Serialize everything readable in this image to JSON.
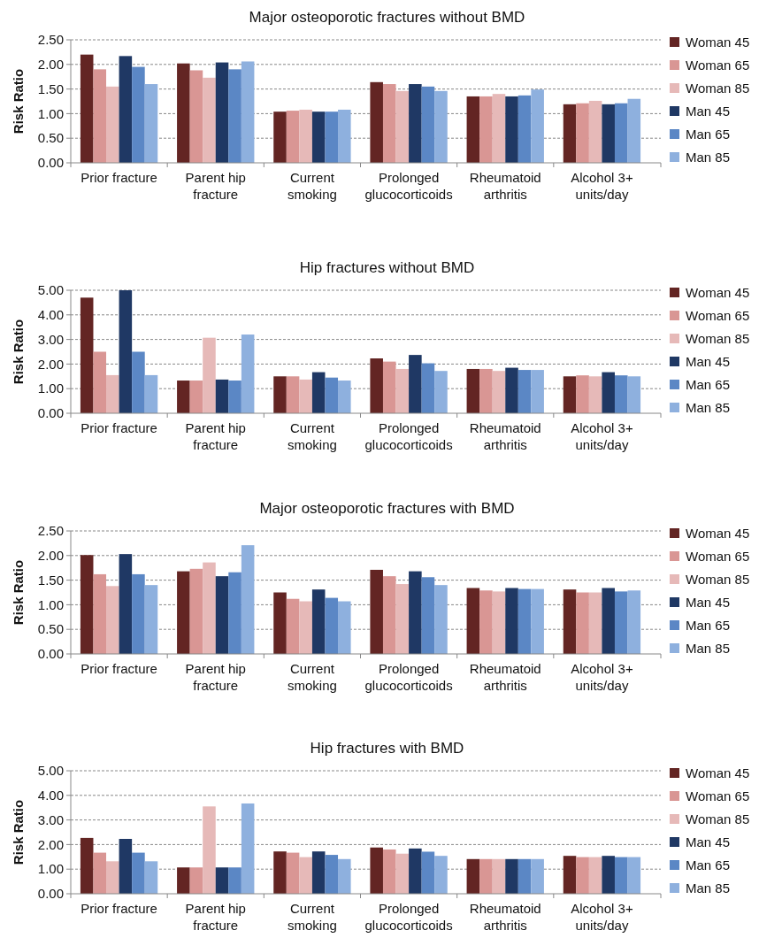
{
  "chart_data": [
    {
      "type": "bar",
      "title": "Major osteoporotic fractures without BMD",
      "ylabel": "Risk Ratio",
      "categories": [
        "Prior fracture",
        "Parent hip fracture",
        "Current smoking",
        "Prolonged glucocorticoids",
        "Rheumatoid arthritis",
        "Alcohol 3+ units/day"
      ],
      "ylim": [
        0,
        2.5
      ],
      "yticks": [
        {
          "value": 0,
          "label": "0.00"
        },
        {
          "value": 0.5,
          "label": "0.50"
        },
        {
          "value": 1,
          "label": "1.00"
        },
        {
          "value": 1.5,
          "label": "1.50"
        },
        {
          "value": 2,
          "label": "2.00"
        },
        {
          "value": 2.5,
          "label": "2.50"
        }
      ],
      "grid": "y",
      "legend": "right",
      "series": [
        {
          "name": "Woman 45",
          "color": "#632523",
          "values": [
            2.2,
            2.02,
            1.04,
            1.64,
            1.35,
            1.19
          ]
        },
        {
          "name": "Woman 65",
          "color": "#d99694",
          "values": [
            1.9,
            1.88,
            1.06,
            1.6,
            1.35,
            1.21
          ]
        },
        {
          "name": "Woman 85",
          "color": "#e6b9b8",
          "values": [
            1.55,
            1.73,
            1.08,
            1.46,
            1.4,
            1.26
          ]
        },
        {
          "name": "Man 45",
          "color": "#1f3864",
          "values": [
            2.17,
            2.04,
            1.04,
            1.6,
            1.35,
            1.19
          ]
        },
        {
          "name": "Man 65",
          "color": "#5b87c5",
          "values": [
            1.95,
            1.9,
            1.04,
            1.55,
            1.37,
            1.21
          ]
        },
        {
          "name": "Man 85",
          "color": "#8eb0de",
          "values": [
            1.6,
            2.06,
            1.08,
            1.46,
            1.49,
            1.3
          ]
        }
      ]
    },
    {
      "type": "bar",
      "title": "Hip fractures without BMD",
      "ylabel": "Risk Ratio",
      "categories": [
        "Prior fracture",
        "Parent hip fracture",
        "Current smoking",
        "Prolonged glucocorticoids",
        "Rheumatoid arthritis",
        "Alcohol 3+ units/day"
      ],
      "ylim": [
        0,
        5
      ],
      "yticks": [
        {
          "value": 0,
          "label": "0.00"
        },
        {
          "value": 1,
          "label": "1.00"
        },
        {
          "value": 2,
          "label": "2.00"
        },
        {
          "value": 3,
          "label": "3.00"
        },
        {
          "value": 4,
          "label": "4.00"
        },
        {
          "value": 5,
          "label": "5.00"
        }
      ],
      "grid": "y",
      "legend": "right",
      "series": [
        {
          "name": "Woman 45",
          "color": "#632523",
          "values": [
            4.7,
            1.33,
            1.5,
            2.23,
            1.8,
            1.5
          ]
        },
        {
          "name": "Woman 65",
          "color": "#d99694",
          "values": [
            2.5,
            1.33,
            1.5,
            2.1,
            1.8,
            1.54
          ]
        },
        {
          "name": "Woman 85",
          "color": "#e6b9b8",
          "values": [
            1.55,
            3.07,
            1.37,
            1.8,
            1.72,
            1.5
          ]
        },
        {
          "name": "Man 45",
          "color": "#1f3864",
          "values": [
            5.0,
            1.37,
            1.67,
            2.37,
            1.85,
            1.67
          ]
        },
        {
          "name": "Man 65",
          "color": "#5b87c5",
          "values": [
            2.5,
            1.33,
            1.45,
            2.03,
            1.76,
            1.54
          ]
        },
        {
          "name": "Man 85",
          "color": "#8eb0de",
          "values": [
            1.55,
            3.2,
            1.33,
            1.72,
            1.76,
            1.5
          ]
        }
      ]
    },
    {
      "type": "bar",
      "title": "Major osteoporotic fractures with BMD",
      "ylabel": "Risk Ratio",
      "categories": [
        "Prior fracture",
        "Parent hip fracture",
        "Current smoking",
        "Prolonged glucocorticoids",
        "Rheumatoid arthritis",
        "Alcohol 3+ units/day"
      ],
      "ylim": [
        0,
        2.5
      ],
      "yticks": [
        {
          "value": 0,
          "label": "0.00"
        },
        {
          "value": 0.5,
          "label": "0.50"
        },
        {
          "value": 1,
          "label": "1.00"
        },
        {
          "value": 1.5,
          "label": "1.50"
        },
        {
          "value": 2,
          "label": "2.00"
        },
        {
          "value": 2.5,
          "label": "2.50"
        }
      ],
      "grid": "y",
      "legend": "right",
      "series": [
        {
          "name": "Woman 45",
          "color": "#632523",
          "values": [
            2.01,
            1.68,
            1.25,
            1.71,
            1.34,
            1.31
          ]
        },
        {
          "name": "Woman 65",
          "color": "#d99694",
          "values": [
            1.62,
            1.73,
            1.12,
            1.58,
            1.29,
            1.25
          ]
        },
        {
          "name": "Woman 85",
          "color": "#e6b9b8",
          "values": [
            1.38,
            1.86,
            1.07,
            1.42,
            1.27,
            1.25
          ]
        },
        {
          "name": "Man 45",
          "color": "#1f3864",
          "values": [
            2.03,
            1.58,
            1.31,
            1.68,
            1.34,
            1.34
          ]
        },
        {
          "name": "Man 65",
          "color": "#5b87c5",
          "values": [
            1.62,
            1.66,
            1.14,
            1.56,
            1.32,
            1.27
          ]
        },
        {
          "name": "Man 85",
          "color": "#8eb0de",
          "values": [
            1.4,
            2.21,
            1.07,
            1.4,
            1.32,
            1.29
          ]
        }
      ]
    },
    {
      "type": "bar",
      "title": "Hip fractures with BMD",
      "ylabel": "Risk Ratio",
      "categories": [
        "Prior fracture",
        "Parent hip fracture",
        "Current smoking",
        "Prolonged glucocorticoids",
        "Rheumatoid arthritis",
        "Alcohol 3+ units/day"
      ],
      "ylim": [
        0,
        5
      ],
      "yticks": [
        {
          "value": 0,
          "label": "0.00"
        },
        {
          "value": 1,
          "label": "1.00"
        },
        {
          "value": 2,
          "label": "2.00"
        },
        {
          "value": 3,
          "label": "3.00"
        },
        {
          "value": 4,
          "label": "4.00"
        },
        {
          "value": 5,
          "label": "5.00"
        }
      ],
      "grid": "y",
      "legend": "right",
      "series": [
        {
          "name": "Woman 45",
          "color": "#632523",
          "values": [
            2.27,
            1.07,
            1.72,
            1.88,
            1.41,
            1.54
          ]
        },
        {
          "name": "Woman 65",
          "color": "#d99694",
          "values": [
            1.67,
            1.07,
            1.67,
            1.8,
            1.41,
            1.49
          ]
        },
        {
          "name": "Woman 85",
          "color": "#e6b9b8",
          "values": [
            1.32,
            3.55,
            1.49,
            1.63,
            1.41,
            1.49
          ]
        },
        {
          "name": "Man 45",
          "color": "#1f3864",
          "values": [
            2.23,
            1.07,
            1.72,
            1.84,
            1.41,
            1.54
          ]
        },
        {
          "name": "Man 65",
          "color": "#5b87c5",
          "values": [
            1.67,
            1.07,
            1.58,
            1.71,
            1.41,
            1.49
          ]
        },
        {
          "name": "Man 85",
          "color": "#8eb0de",
          "values": [
            1.32,
            3.67,
            1.41,
            1.54,
            1.41,
            1.49
          ]
        }
      ]
    }
  ]
}
